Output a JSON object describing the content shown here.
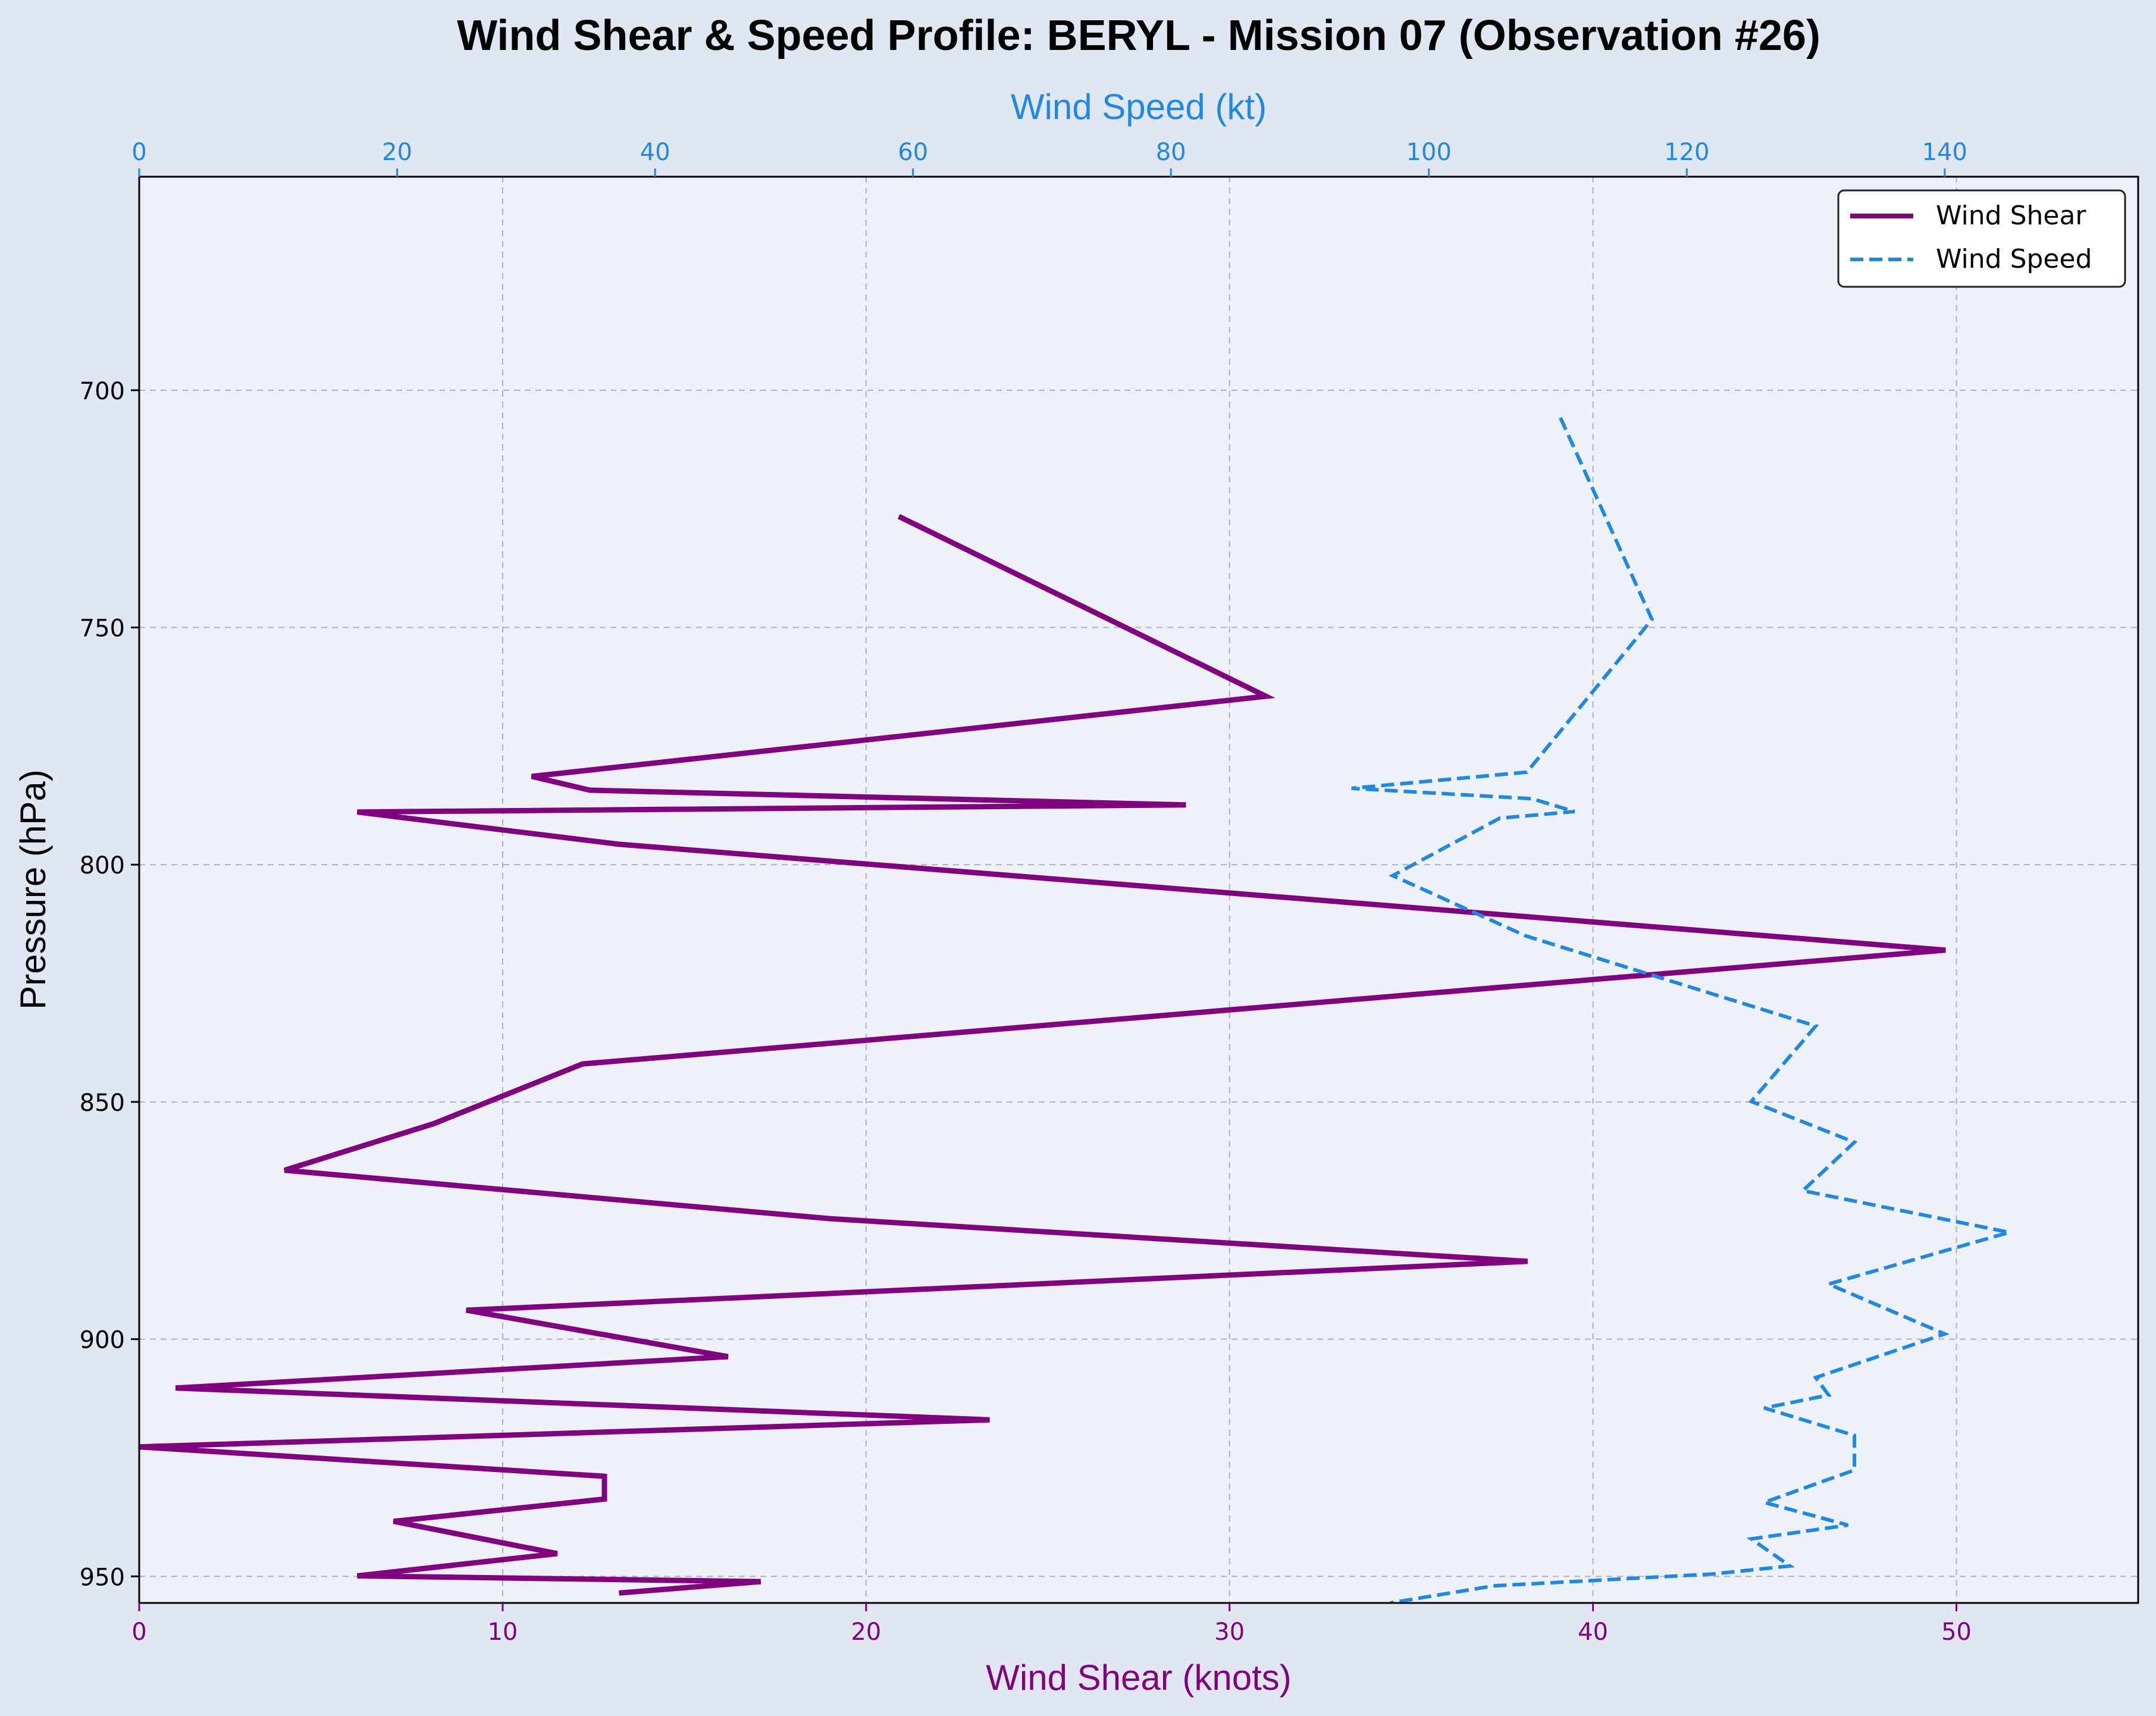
{
  "chart_data": {
    "type": "line",
    "title": "Wind Shear & Speed Profile: BERYL - Mission 07 (Observation #26)",
    "xlabel_bottom": "Wind Shear (knots)",
    "xlabel_top": "Wind Speed (kt)",
    "ylabel": "Pressure (hPa)",
    "xlim_bottom": [
      0,
      55
    ],
    "xlim_top": [
      0,
      155
    ],
    "ylim": [
      955.6,
      655
    ],
    "y_inverted": true,
    "grid": true,
    "legend_placement": "top-right",
    "x_ticks_bottom": [
      "0",
      "10",
      "20",
      "30",
      "40",
      "50"
    ],
    "x_ticks_top": [
      "0",
      "20",
      "40",
      "60",
      "80",
      "100",
      "120",
      "140"
    ],
    "y_ticks": [
      "700",
      "750",
      "800",
      "850",
      "900",
      "950"
    ],
    "series": [
      {
        "name": "Wind Shear",
        "axis": "bottom",
        "color": "#800080",
        "style": "solid",
        "points": [
          [
            20.9,
            726.6
          ],
          [
            31.0,
            764.5
          ],
          [
            10.8,
            781.4
          ],
          [
            12.4,
            784.3
          ],
          [
            28.8,
            787.4
          ],
          [
            6.0,
            788.9
          ],
          [
            13.2,
            795.7
          ],
          [
            49.7,
            818.0
          ],
          [
            12.2,
            842.0
          ],
          [
            8.1,
            854.6
          ],
          [
            4.0,
            864.4
          ],
          [
            19.0,
            874.6
          ],
          [
            38.2,
            883.6
          ],
          [
            9.0,
            893.9
          ],
          [
            16.2,
            903.7
          ],
          [
            1.0,
            910.3
          ],
          [
            23.4,
            917.0
          ],
          [
            0.0,
            922.7
          ],
          [
            12.8,
            928.9
          ],
          [
            12.8,
            933.7
          ],
          [
            7.0,
            938.4
          ],
          [
            11.5,
            945.2
          ],
          [
            6.0,
            949.9
          ],
          [
            17.1,
            951.1
          ],
          [
            13.2,
            953.5
          ]
        ]
      },
      {
        "name": "Wind Speed",
        "axis": "top",
        "color": "#1e88e5",
        "style": "dashed",
        "points": [
          [
            110.2,
            705.8
          ],
          [
            117.3,
            748.3
          ],
          [
            107.6,
            780.5
          ],
          [
            94.0,
            783.9
          ],
          [
            108.0,
            786.1
          ],
          [
            111.3,
            788.8
          ],
          [
            105.5,
            790.2
          ],
          [
            97.2,
            802.3
          ],
          [
            107.5,
            815.0
          ],
          [
            130.0,
            834.0
          ],
          [
            125.0,
            849.9
          ],
          [
            133.0,
            858.5
          ],
          [
            129.0,
            868.7
          ],
          [
            145.0,
            877.5
          ],
          [
            131.0,
            888.4
          ],
          [
            140.0,
            898.9
          ],
          [
            130.0,
            908.1
          ],
          [
            131.0,
            911.8
          ],
          [
            126.0,
            914.5
          ],
          [
            133.0,
            920.3
          ],
          [
            133.0,
            927.6
          ],
          [
            126.0,
            934.4
          ],
          [
            132.5,
            939.2
          ],
          [
            125.0,
            942.1
          ],
          [
            128.0,
            947.8
          ],
          [
            122.0,
            949.5
          ],
          [
            105.0,
            952.0
          ],
          [
            97.0,
            955.6
          ]
        ]
      }
    ]
  }
}
